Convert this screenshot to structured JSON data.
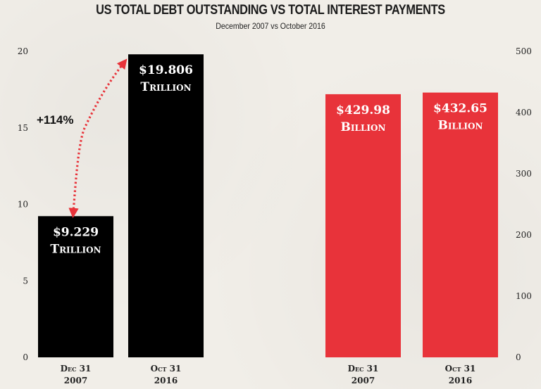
{
  "title": "US TOTAL DEBT OUTSTANDING VS TOTAL INTEREST PAYMENTS",
  "subtitle": "December 2007 vs October 2016",
  "colors": {
    "left_bar": "#000000",
    "right_bar": "#e8333a",
    "arrow": "#e8333a"
  },
  "chart_data": [
    {
      "type": "bar",
      "categories": [
        [
          "Dec 31",
          "2007"
        ],
        [
          "Oct 31",
          "2016"
        ]
      ],
      "values": [
        9.229,
        19.806
      ],
      "bar_labels": [
        [
          "$9.229",
          "Trillion"
        ],
        [
          "$19.806",
          "Trillion"
        ]
      ],
      "yticks": [
        0,
        5,
        10,
        15,
        20
      ],
      "ylim": [
        0,
        20
      ],
      "axis_side": "left",
      "annotation": "+114%"
    },
    {
      "type": "bar",
      "categories": [
        [
          "Dec 31",
          "2007"
        ],
        [
          "Oct 31",
          "2016"
        ]
      ],
      "values": [
        429.98,
        432.65
      ],
      "bar_labels": [
        [
          "$429.98",
          "Billion"
        ],
        [
          "$432.65",
          "Billion"
        ]
      ],
      "yticks": [
        0,
        100,
        200,
        300,
        400,
        500
      ],
      "ylim": [
        0,
        500
      ],
      "axis_side": "right"
    }
  ]
}
